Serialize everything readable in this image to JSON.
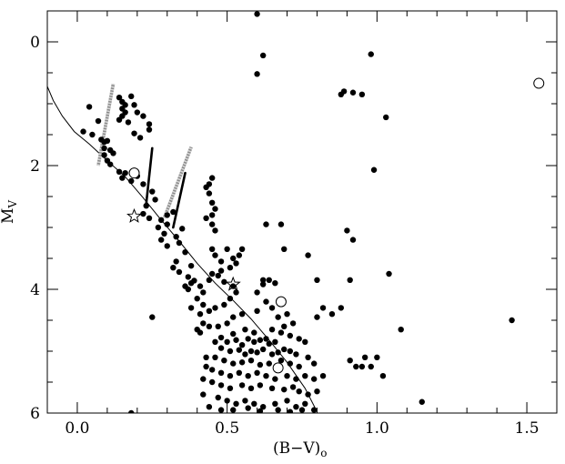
{
  "chart_data": {
    "type": "scatter",
    "title": "",
    "xlabel": "(B−V)",
    "xlabel_sub": "o",
    "ylabel": "M",
    "ylabel_sub": "V",
    "xlim": [
      -0.1,
      1.6
    ],
    "ylim": [
      6.0,
      -0.5
    ],
    "y_inverted": true,
    "grid": false,
    "x_ticks": [
      {
        "value": 0.0,
        "label": "0.0"
      },
      {
        "value": 0.5,
        "label": "0.5"
      },
      {
        "value": 1.0,
        "label": "1.0"
      },
      {
        "value": 1.5,
        "label": "1.5"
      }
    ],
    "y_ticks": [
      {
        "value": 0,
        "label": "0"
      },
      {
        "value": 2,
        "label": "2"
      },
      {
        "value": 4,
        "label": "4"
      },
      {
        "value": 6,
        "label": "6"
      }
    ],
    "series": [
      {
        "marker": "filled-circle",
        "points": [
          [
            0.04,
            1.05
          ],
          [
            0.07,
            1.28
          ],
          [
            0.02,
            1.45
          ],
          [
            0.05,
            1.5
          ],
          [
            0.08,
            1.58
          ],
          [
            0.09,
            1.62
          ],
          [
            0.1,
            1.6
          ],
          [
            0.09,
            1.72
          ],
          [
            0.11,
            1.75
          ],
          [
            0.09,
            1.83
          ],
          [
            0.12,
            1.8
          ],
          [
            0.1,
            1.92
          ],
          [
            0.11,
            1.98
          ],
          [
            0.14,
            0.9
          ],
          [
            0.15,
            0.97
          ],
          [
            0.16,
            1.02
          ],
          [
            0.15,
            1.08
          ],
          [
            0.16,
            1.14
          ],
          [
            0.15,
            1.2
          ],
          [
            0.14,
            1.26
          ],
          [
            0.17,
            1.3
          ],
          [
            0.18,
            0.88
          ],
          [
            0.19,
            1.48
          ],
          [
            0.21,
            1.55
          ],
          [
            0.19,
            1.02
          ],
          [
            0.2,
            1.14
          ],
          [
            0.22,
            1.2
          ],
          [
            0.24,
            1.33
          ],
          [
            0.24,
            1.42
          ],
          [
            0.14,
            2.1
          ],
          [
            0.15,
            2.2
          ],
          [
            0.16,
            2.12
          ],
          [
            0.18,
            2.25
          ],
          [
            0.2,
            2.17
          ],
          [
            0.22,
            2.3
          ],
          [
            0.25,
            2.42
          ],
          [
            0.26,
            2.55
          ],
          [
            0.23,
            2.65
          ],
          [
            0.22,
            2.78
          ],
          [
            0.24,
            2.85
          ],
          [
            0.28,
            2.88
          ],
          [
            0.3,
            2.8
          ],
          [
            0.32,
            2.75
          ],
          [
            0.3,
            2.95
          ],
          [
            0.27,
            3.0
          ],
          [
            0.29,
            3.1
          ],
          [
            0.28,
            3.2
          ],
          [
            0.3,
            3.3
          ],
          [
            0.34,
            3.25
          ],
          [
            0.35,
            3.02
          ],
          [
            0.33,
            3.15
          ],
          [
            0.36,
            3.4
          ],
          [
            0.33,
            3.55
          ],
          [
            0.32,
            3.65
          ],
          [
            0.34,
            3.72
          ],
          [
            0.37,
            3.8
          ],
          [
            0.38,
            3.62
          ],
          [
            0.36,
            3.95
          ],
          [
            0.38,
            3.9
          ],
          [
            0.37,
            4.0
          ],
          [
            0.39,
            3.86
          ],
          [
            0.41,
            3.95
          ],
          [
            0.42,
            4.05
          ],
          [
            0.44,
            3.85
          ],
          [
            0.45,
            3.75
          ],
          [
            0.43,
            2.35
          ],
          [
            0.44,
            2.45
          ],
          [
            0.45,
            2.6
          ],
          [
            0.46,
            2.7
          ],
          [
            0.45,
            2.8
          ],
          [
            0.43,
            2.85
          ],
          [
            0.45,
            2.95
          ],
          [
            0.46,
            3.05
          ],
          [
            0.45,
            2.2
          ],
          [
            0.44,
            2.3
          ],
          [
            0.4,
            4.15
          ],
          [
            0.42,
            4.25
          ],
          [
            0.38,
            4.3
          ],
          [
            0.41,
            4.4
          ],
          [
            0.44,
            4.35
          ],
          [
            0.46,
            4.3
          ],
          [
            0.49,
            4.25
          ],
          [
            0.51,
            4.15
          ],
          [
            0.53,
            4.05
          ],
          [
            0.52,
            3.95
          ],
          [
            0.49,
            3.88
          ],
          [
            0.47,
            3.78
          ],
          [
            0.48,
            3.7
          ],
          [
            0.51,
            3.65
          ],
          [
            0.53,
            3.58
          ],
          [
            0.52,
            3.5
          ],
          [
            0.48,
            3.55
          ],
          [
            0.46,
            3.45
          ],
          [
            0.45,
            3.35
          ],
          [
            0.5,
            3.35
          ],
          [
            0.55,
            3.35
          ],
          [
            0.54,
            3.45
          ],
          [
            0.42,
            4.55
          ],
          [
            0.4,
            4.65
          ],
          [
            0.41,
            4.7
          ],
          [
            0.44,
            4.6
          ],
          [
            0.47,
            4.6
          ],
          [
            0.5,
            4.55
          ],
          [
            0.52,
            4.45
          ],
          [
            0.55,
            4.4
          ],
          [
            0.52,
            4.72
          ],
          [
            0.48,
            4.78
          ],
          [
            0.46,
            4.85
          ],
          [
            0.5,
            4.85
          ],
          [
            0.53,
            4.82
          ],
          [
            0.55,
            4.9
          ],
          [
            0.57,
            4.8
          ],
          [
            0.59,
            4.85
          ],
          [
            0.61,
            4.82
          ],
          [
            0.63,
            4.8
          ],
          [
            0.64,
            4.88
          ],
          [
            0.66,
            4.85
          ],
          [
            0.48,
            4.95
          ],
          [
            0.51,
            5.0
          ],
          [
            0.54,
            4.98
          ],
          [
            0.56,
            5.05
          ],
          [
            0.58,
            5.0
          ],
          [
            0.6,
            5.02
          ],
          [
            0.62,
            4.97
          ],
          [
            0.65,
            5.05
          ],
          [
            0.67,
            5.02
          ],
          [
            0.69,
            4.97
          ],
          [
            0.71,
            5.0
          ],
          [
            0.73,
            5.05
          ],
          [
            0.43,
            5.1
          ],
          [
            0.46,
            5.1
          ],
          [
            0.49,
            5.15
          ],
          [
            0.52,
            5.2
          ],
          [
            0.55,
            5.18
          ],
          [
            0.58,
            5.15
          ],
          [
            0.61,
            5.22
          ],
          [
            0.64,
            5.2
          ],
          [
            0.68,
            5.15
          ],
          [
            0.71,
            5.2
          ],
          [
            0.74,
            5.25
          ],
          [
            0.77,
            5.1
          ],
          [
            0.79,
            5.2
          ],
          [
            0.45,
            5.3
          ],
          [
            0.48,
            5.35
          ],
          [
            0.51,
            5.4
          ],
          [
            0.54,
            5.35
          ],
          [
            0.57,
            5.4
          ],
          [
            0.6,
            5.35
          ],
          [
            0.63,
            5.4
          ],
          [
            0.66,
            5.45
          ],
          [
            0.7,
            5.4
          ],
          [
            0.73,
            5.45
          ],
          [
            0.76,
            5.4
          ],
          [
            0.79,
            5.45
          ],
          [
            0.82,
            5.4
          ],
          [
            0.45,
            5.5
          ],
          [
            0.48,
            5.55
          ],
          [
            0.51,
            5.6
          ],
          [
            0.55,
            5.55
          ],
          [
            0.58,
            5.6
          ],
          [
            0.61,
            5.55
          ],
          [
            0.65,
            5.6
          ],
          [
            0.69,
            5.62
          ],
          [
            0.72,
            5.58
          ],
          [
            0.74,
            5.65
          ],
          [
            0.77,
            5.7
          ],
          [
            0.8,
            5.65
          ],
          [
            0.42,
            5.7
          ],
          [
            0.47,
            5.75
          ],
          [
            0.5,
            5.8
          ],
          [
            0.53,
            5.85
          ],
          [
            0.56,
            5.8
          ],
          [
            0.59,
            5.85
          ],
          [
            0.62,
            5.9
          ],
          [
            0.66,
            5.85
          ],
          [
            0.7,
            5.8
          ],
          [
            0.73,
            5.9
          ],
          [
            0.76,
            5.85
          ],
          [
            0.79,
            5.95
          ],
          [
            0.44,
            5.9
          ],
          [
            0.48,
            5.95
          ],
          [
            0.52,
            5.95
          ],
          [
            0.57,
            5.92
          ],
          [
            0.61,
            5.97
          ],
          [
            0.67,
            5.95
          ],
          [
            0.71,
            5.98
          ],
          [
            0.75,
            5.95
          ],
          [
            0.42,
            5.45
          ],
          [
            0.43,
            5.25
          ],
          [
            0.6,
            4.05
          ],
          [
            0.62,
            3.92
          ],
          [
            0.64,
            3.85
          ],
          [
            0.66,
            3.9
          ],
          [
            0.63,
            4.2
          ],
          [
            0.6,
            4.35
          ],
          [
            0.65,
            4.3
          ],
          [
            0.67,
            4.45
          ],
          [
            0.7,
            4.4
          ],
          [
            0.69,
            4.6
          ],
          [
            0.72,
            4.55
          ],
          [
            0.68,
            4.7
          ],
          [
            0.65,
            4.65
          ],
          [
            0.59,
            4.7
          ],
          [
            0.56,
            4.65
          ],
          [
            0.71,
            4.75
          ],
          [
            0.74,
            4.8
          ],
          [
            0.76,
            4.85
          ],
          [
            0.63,
            2.95
          ],
          [
            0.68,
            2.95
          ],
          [
            0.69,
            3.35
          ],
          [
            0.62,
            3.85
          ],
          [
            0.18,
            6.0
          ],
          [
            0.25,
            4.45
          ],
          [
            0.6,
            -0.45
          ],
          [
            0.62,
            0.22
          ],
          [
            0.6,
            0.52
          ],
          [
            0.77,
            3.45
          ],
          [
            0.8,
            3.85
          ],
          [
            0.8,
            4.45
          ],
          [
            0.82,
            4.3
          ],
          [
            0.85,
            4.4
          ],
          [
            0.88,
            4.3
          ],
          [
            0.9,
            3.05
          ],
          [
            0.92,
            3.2
          ],
          [
            0.91,
            3.85
          ],
          [
            0.88,
            0.85
          ],
          [
            0.89,
            0.8
          ],
          [
            0.92,
            0.82
          ],
          [
            0.95,
            0.85
          ],
          [
            0.98,
            0.2
          ],
          [
            0.99,
            2.07
          ],
          [
            1.03,
            1.22
          ],
          [
            1.04,
            3.75
          ],
          [
            1.08,
            4.65
          ],
          [
            0.91,
            5.15
          ],
          [
            0.93,
            5.25
          ],
          [
            0.95,
            5.25
          ],
          [
            0.96,
            5.1
          ],
          [
            0.98,
            5.25
          ],
          [
            1.0,
            5.1
          ],
          [
            1.02,
            5.4
          ],
          [
            1.15,
            5.82
          ],
          [
            1.45,
            4.5
          ]
        ]
      },
      {
        "marker": "open-circle",
        "points": [
          [
            0.19,
            2.12
          ],
          [
            0.68,
            4.2
          ],
          [
            0.67,
            5.27
          ],
          [
            1.54,
            0.67
          ]
        ]
      },
      {
        "marker": "open-star",
        "points": [
          [
            0.19,
            2.82
          ],
          [
            0.52,
            3.92
          ]
        ]
      },
      {
        "marker": "black-segment",
        "segments": [
          [
            [
              0.23,
              2.62
            ],
            [
              0.25,
              1.72
            ]
          ],
          [
            [
              0.32,
              3.0
            ],
            [
              0.36,
              2.12
            ]
          ]
        ]
      },
      {
        "marker": "hatched-segment",
        "segments": [
          [
            [
              0.07,
              2.0
            ],
            [
              0.12,
              0.68
            ]
          ],
          [
            [
              0.29,
              2.85
            ],
            [
              0.38,
              1.7
            ]
          ]
        ]
      }
    ],
    "curve": {
      "style": "thin-line",
      "points": [
        [
          -0.1,
          0.72
        ],
        [
          -0.08,
          0.95
        ],
        [
          -0.05,
          1.2
        ],
        [
          -0.01,
          1.45
        ],
        [
          0.04,
          1.65
        ],
        [
          0.1,
          1.92
        ],
        [
          0.16,
          2.18
        ],
        [
          0.22,
          2.52
        ],
        [
          0.28,
          2.88
        ],
        [
          0.34,
          3.22
        ],
        [
          0.4,
          3.58
        ],
        [
          0.46,
          3.9
        ],
        [
          0.52,
          4.18
        ],
        [
          0.58,
          4.48
        ],
        [
          0.64,
          4.82
        ],
        [
          0.7,
          5.18
        ],
        [
          0.76,
          5.6
        ],
        [
          0.8,
          5.98
        ]
      ]
    }
  }
}
